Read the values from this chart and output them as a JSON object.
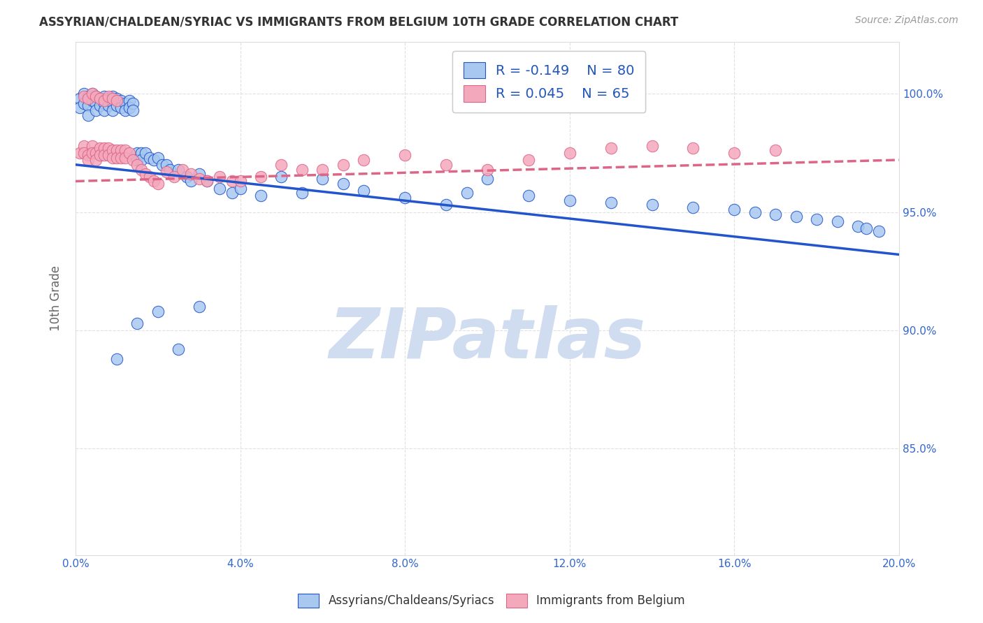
{
  "title": "ASSYRIAN/CHALDEAN/SYRIAC VS IMMIGRANTS FROM BELGIUM 10TH GRADE CORRELATION CHART",
  "source": "Source: ZipAtlas.com",
  "ylabel": "10th Grade",
  "legend_label1": "Assyrians/Chaldeans/Syriacs",
  "legend_label2": "Immigrants from Belgium",
  "R1": -0.149,
  "N1": 80,
  "R2": 0.045,
  "N2": 65,
  "color1": "#A8C8F0",
  "color2": "#F4A8BC",
  "trendline1_color": "#2255CC",
  "trendline2_color": "#DD6688",
  "xlim": [
    0.0,
    0.2
  ],
  "ylim": [
    0.805,
    1.022
  ],
  "xticks": [
    0.0,
    0.04,
    0.08,
    0.12,
    0.16,
    0.2
  ],
  "xtick_labels": [
    "0.0%",
    "4.0%",
    "8.0%",
    "12.0%",
    "16.0%",
    "20.0%"
  ],
  "ytick_left": [
    0.85,
    0.9,
    0.95,
    1.0
  ],
  "ytick_labels_left": [
    "85.0%",
    "90.0%",
    "95.0%",
    "100.0%"
  ],
  "ytick_right": [
    0.85,
    0.9,
    0.95,
    1.0
  ],
  "ytick_labels_right": [
    "85.0%",
    "90.0%",
    "95.0%",
    "100.0%"
  ],
  "watermark": "ZIPatlas",
  "watermark_color": "#D0DCF0",
  "grid_color": "#DDDDDD",
  "background_color": "#FFFFFF",
  "blue_x": [
    0.001,
    0.001,
    0.002,
    0.002,
    0.003,
    0.003,
    0.003,
    0.004,
    0.004,
    0.005,
    0.005,
    0.005,
    0.006,
    0.006,
    0.007,
    0.007,
    0.007,
    0.008,
    0.008,
    0.009,
    0.009,
    0.009,
    0.01,
    0.01,
    0.011,
    0.011,
    0.012,
    0.012,
    0.013,
    0.013,
    0.014,
    0.014,
    0.015,
    0.015,
    0.016,
    0.016,
    0.017,
    0.018,
    0.019,
    0.02,
    0.021,
    0.022,
    0.023,
    0.025,
    0.027,
    0.028,
    0.03,
    0.032,
    0.035,
    0.038,
    0.04,
    0.045,
    0.05,
    0.055,
    0.06,
    0.065,
    0.07,
    0.08,
    0.09,
    0.095,
    0.1,
    0.11,
    0.12,
    0.13,
    0.14,
    0.15,
    0.16,
    0.165,
    0.17,
    0.175,
    0.18,
    0.185,
    0.19,
    0.192,
    0.195,
    0.01,
    0.015,
    0.02,
    0.025,
    0.03
  ],
  "blue_y": [
    0.998,
    0.994,
    1.0,
    0.996,
    0.999,
    0.995,
    0.991,
    1.0,
    0.997,
    0.999,
    0.996,
    0.993,
    0.998,
    0.995,
    0.999,
    0.996,
    0.993,
    0.998,
    0.995,
    0.999,
    0.996,
    0.993,
    0.998,
    0.995,
    0.997,
    0.994,
    0.996,
    0.993,
    0.997,
    0.994,
    0.996,
    0.993,
    0.975,
    0.972,
    0.975,
    0.972,
    0.975,
    0.973,
    0.972,
    0.973,
    0.97,
    0.97,
    0.968,
    0.968,
    0.965,
    0.963,
    0.966,
    0.963,
    0.96,
    0.958,
    0.96,
    0.957,
    0.965,
    0.958,
    0.964,
    0.962,
    0.959,
    0.956,
    0.953,
    0.958,
    0.964,
    0.957,
    0.955,
    0.954,
    0.953,
    0.952,
    0.951,
    0.95,
    0.949,
    0.948,
    0.947,
    0.946,
    0.944,
    0.943,
    0.942,
    0.888,
    0.903,
    0.908,
    0.892,
    0.91
  ],
  "pink_x": [
    0.001,
    0.002,
    0.002,
    0.003,
    0.003,
    0.004,
    0.004,
    0.005,
    0.005,
    0.006,
    0.006,
    0.007,
    0.007,
    0.008,
    0.008,
    0.009,
    0.009,
    0.01,
    0.01,
    0.011,
    0.011,
    0.012,
    0.012,
    0.013,
    0.014,
    0.015,
    0.016,
    0.017,
    0.018,
    0.019,
    0.02,
    0.022,
    0.024,
    0.026,
    0.028,
    0.03,
    0.032,
    0.035,
    0.038,
    0.04,
    0.045,
    0.05,
    0.055,
    0.06,
    0.065,
    0.07,
    0.08,
    0.09,
    0.1,
    0.11,
    0.12,
    0.13,
    0.14,
    0.15,
    0.16,
    0.17,
    0.002,
    0.003,
    0.004,
    0.005,
    0.006,
    0.007,
    0.008,
    0.009,
    0.01
  ],
  "pink_y": [
    0.975,
    0.978,
    0.975,
    0.974,
    0.972,
    0.978,
    0.975,
    0.975,
    0.972,
    0.977,
    0.974,
    0.977,
    0.974,
    0.977,
    0.974,
    0.976,
    0.973,
    0.976,
    0.973,
    0.976,
    0.973,
    0.976,
    0.973,
    0.975,
    0.972,
    0.97,
    0.968,
    0.966,
    0.965,
    0.963,
    0.962,
    0.967,
    0.965,
    0.968,
    0.966,
    0.964,
    0.963,
    0.965,
    0.963,
    0.963,
    0.965,
    0.97,
    0.968,
    0.968,
    0.97,
    0.972,
    0.974,
    0.97,
    0.968,
    0.972,
    0.975,
    0.977,
    0.978,
    0.977,
    0.975,
    0.976,
    0.999,
    0.998,
    1.0,
    0.999,
    0.998,
    0.997,
    0.999,
    0.998,
    0.997
  ],
  "blue_trend_x": [
    0.0,
    0.2
  ],
  "blue_trend_y": [
    0.97,
    0.932
  ],
  "pink_trend_x": [
    0.0,
    0.2
  ],
  "pink_trend_y": [
    0.963,
    0.972
  ]
}
